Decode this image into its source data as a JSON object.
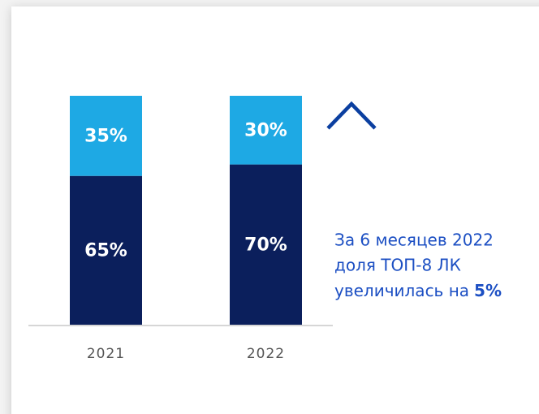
{
  "chart_data": {
    "type": "bar",
    "stacked": true,
    "categories": [
      "2021",
      "2022"
    ],
    "series": [
      {
        "color": "#0b1f5c",
        "values": [
          65,
          70
        ],
        "value_labels": [
          "65%",
          "70%"
        ]
      },
      {
        "color": "#1ea9e4",
        "values": [
          35,
          30
        ],
        "value_labels": [
          "35%",
          "30%"
        ]
      }
    ],
    "ylim": [
      0,
      100
    ],
    "annotation": {
      "lines": [
        "За 6 месяцев 2022",
        "доля ТОП-8 ЛК",
        "увеличилась на"
      ],
      "highlight": "5%"
    }
  }
}
